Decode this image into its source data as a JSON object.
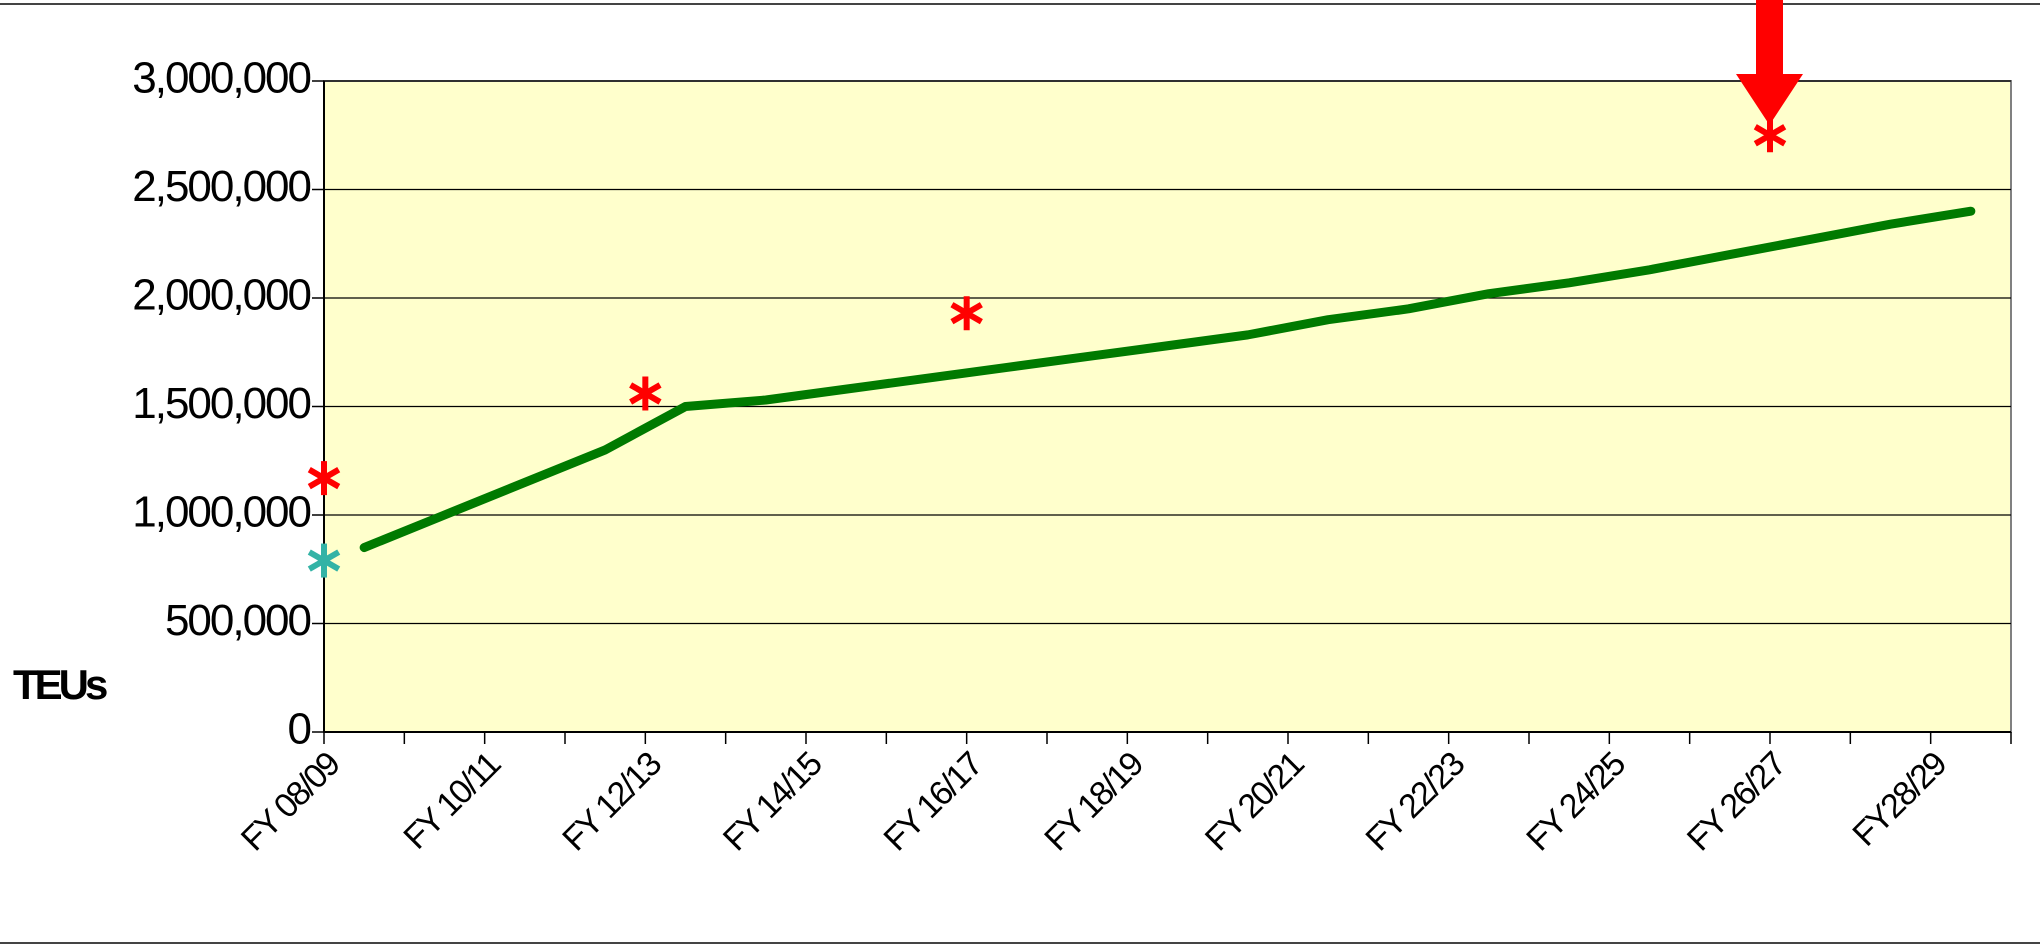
{
  "chart_data": {
    "type": "line",
    "y_axis_label": "TEUs",
    "categories": [
      "FY 08/09",
      null,
      "FY 10/11",
      null,
      "FY 12/13",
      null,
      "FY 14/15",
      null,
      "FY 16/17",
      null,
      "FY 18/19",
      null,
      "FY 20/21",
      null,
      "FY 22/23",
      null,
      "FY 24/25",
      null,
      "FY 26/27",
      null,
      "FY28/29"
    ],
    "series": [
      {
        "color": "#007a00",
        "values": [
          850000,
          1000000,
          1150000,
          1300000,
          1500000,
          1530000,
          1580000,
          1630000,
          1680000,
          1730000,
          1780000,
          1830000,
          1900000,
          1950000,
          2020000,
          2070000,
          2130000,
          2200000,
          2270000,
          2340000,
          2400000
        ]
      },
      {
        "color": "#ff0000",
        "marker": "asterisk",
        "values": [
          1170000,
          null,
          null,
          null,
          1560000,
          null,
          null,
          null,
          1930000,
          null,
          null,
          null,
          null,
          null,
          null,
          null,
          null,
          null,
          2750000,
          null,
          null
        ]
      },
      {
        "color": "#33b3a6",
        "marker": "asterisk",
        "values": [
          790000,
          null,
          null,
          null,
          null,
          null,
          null,
          null,
          null,
          null,
          null,
          null,
          null,
          null,
          null,
          null,
          null,
          null,
          null,
          null,
          null
        ]
      }
    ],
    "ylim": [
      0,
      3000000
    ],
    "yticks": [
      {
        "value": 0,
        "label": "0"
      },
      {
        "value": 500000,
        "label": "500,000"
      },
      {
        "value": 1000000,
        "label": "1,000,000"
      },
      {
        "value": 1500000,
        "label": "1,500,000"
      },
      {
        "value": 2000000,
        "label": "2,000,000"
      },
      {
        "value": 2500000,
        "label": "2,500,000"
      },
      {
        "value": 3000000,
        "label": "3,000,000"
      }
    ],
    "grid": true,
    "plot_background": "#ffffcc"
  }
}
